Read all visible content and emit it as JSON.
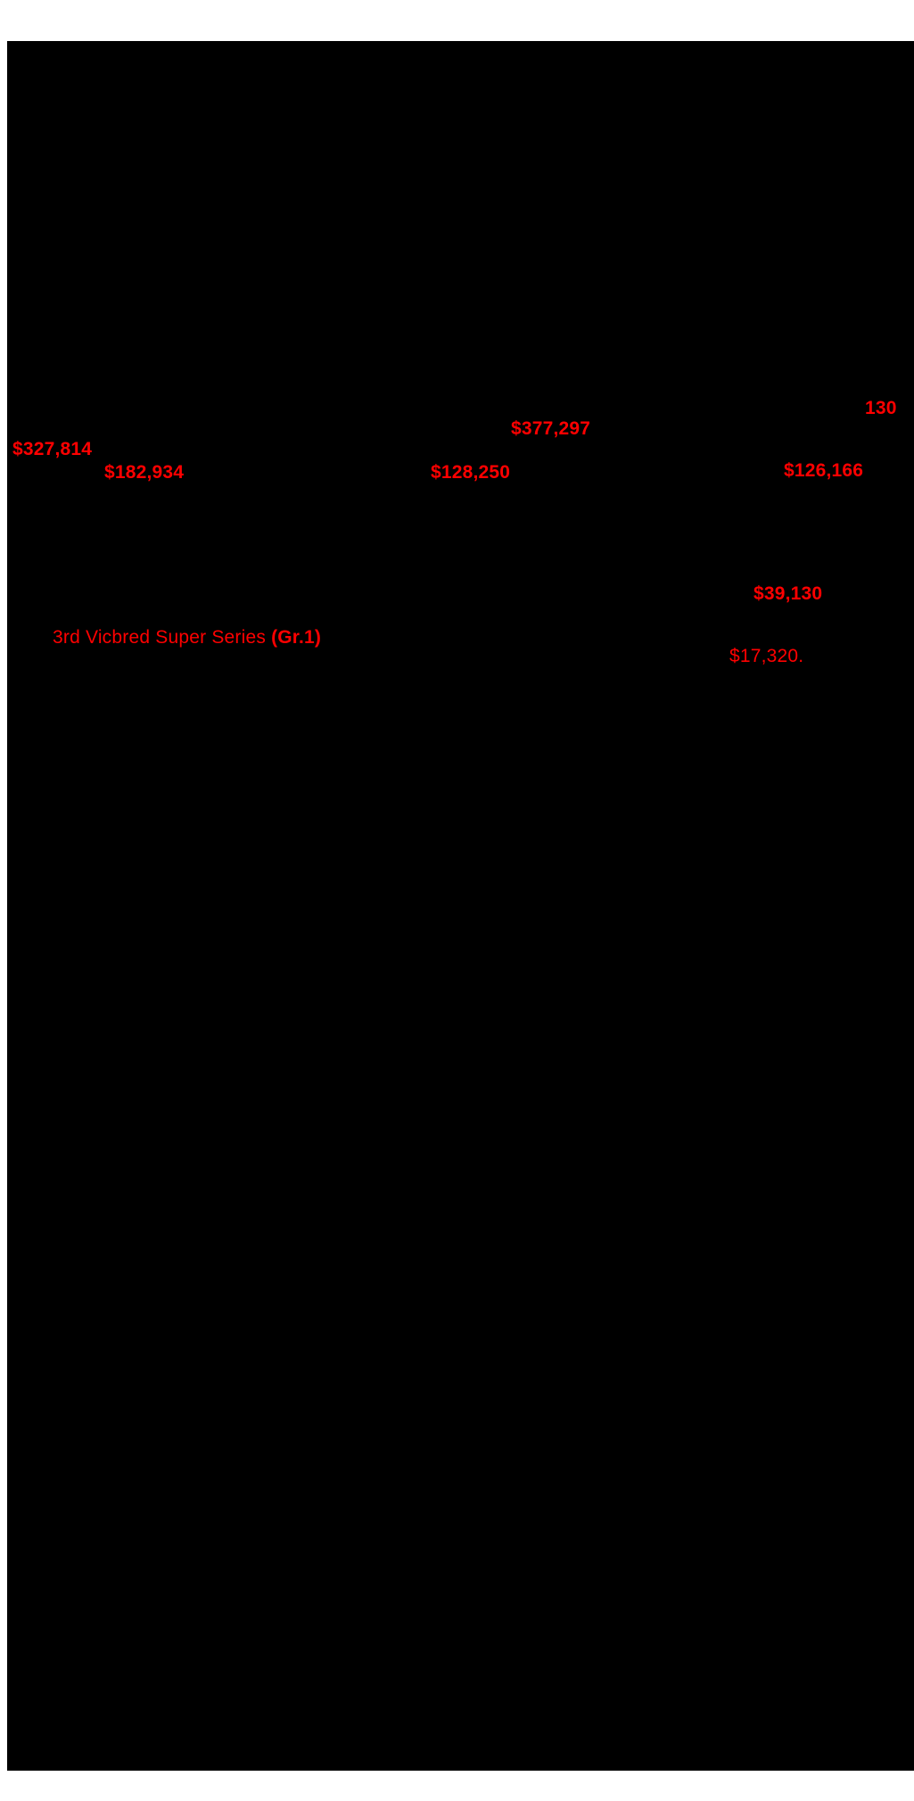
{
  "colors": {
    "page_background": "#ffffff",
    "scan_background": "#000000",
    "annotation_red": "#ff0000"
  },
  "annotations": {
    "count_130": "130",
    "amount_377297": "$377,297",
    "amount_327814": "$327,814",
    "amount_182934": "$182,934",
    "amount_128250": "$128,250",
    "amount_126166": "$126,166",
    "amount_39130": "$39,130",
    "race_title": "3rd Vicbred Super Series ",
    "race_grade": "(Gr.1)",
    "amount_17320": "$17,320."
  }
}
